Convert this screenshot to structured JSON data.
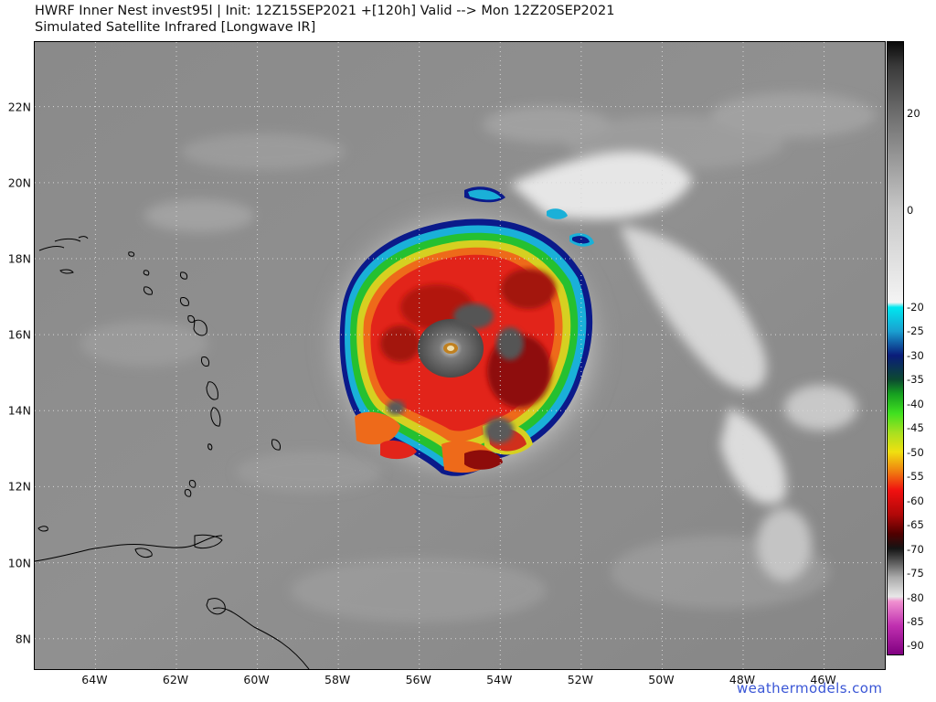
{
  "header": {
    "title_line_1": "HWRF Inner Nest  invest95l | Init: 12Z15SEP2021 +[120h] Valid --> Mon 12Z20SEP2021",
    "title_line_2": "Simulated Satellite Infrared [Longwave IR]"
  },
  "map": {
    "lon_range": [
      -65.5,
      -44.5
    ],
    "lat_range": [
      7.2,
      23.7
    ],
    "gridlines": true,
    "lat_labels": [
      "22N",
      "20N",
      "18N",
      "16N",
      "14N",
      "12N",
      "10N",
      "8N"
    ],
    "lat_values": [
      22,
      20,
      18,
      16,
      14,
      12,
      10,
      8
    ],
    "lon_labels": [
      "64W",
      "62W",
      "60W",
      "58W",
      "56W",
      "54W",
      "52W",
      "50W",
      "48W",
      "46W"
    ],
    "lon_values": [
      -64,
      -62,
      -60,
      -58,
      -56,
      -54,
      -52,
      -50,
      -48,
      -46
    ],
    "storm_center": {
      "lat": 15.6,
      "lon": -55.3
    }
  },
  "colorbar": {
    "labels": [
      "20",
      "0",
      "-20",
      "-25",
      "-30",
      "-35",
      "-40",
      "-45",
      "-50",
      "-55",
      "-60",
      "-65",
      "-70",
      "-75",
      "-80",
      "-85",
      "-90"
    ],
    "label_values": [
      20,
      0,
      -20,
      -25,
      -30,
      -35,
      -40,
      -45,
      -50,
      -55,
      -60,
      -65,
      -70,
      -75,
      -80,
      -85,
      -90
    ],
    "value_range": [
      35,
      -92
    ]
  },
  "watermark": "weathermodels.com"
}
